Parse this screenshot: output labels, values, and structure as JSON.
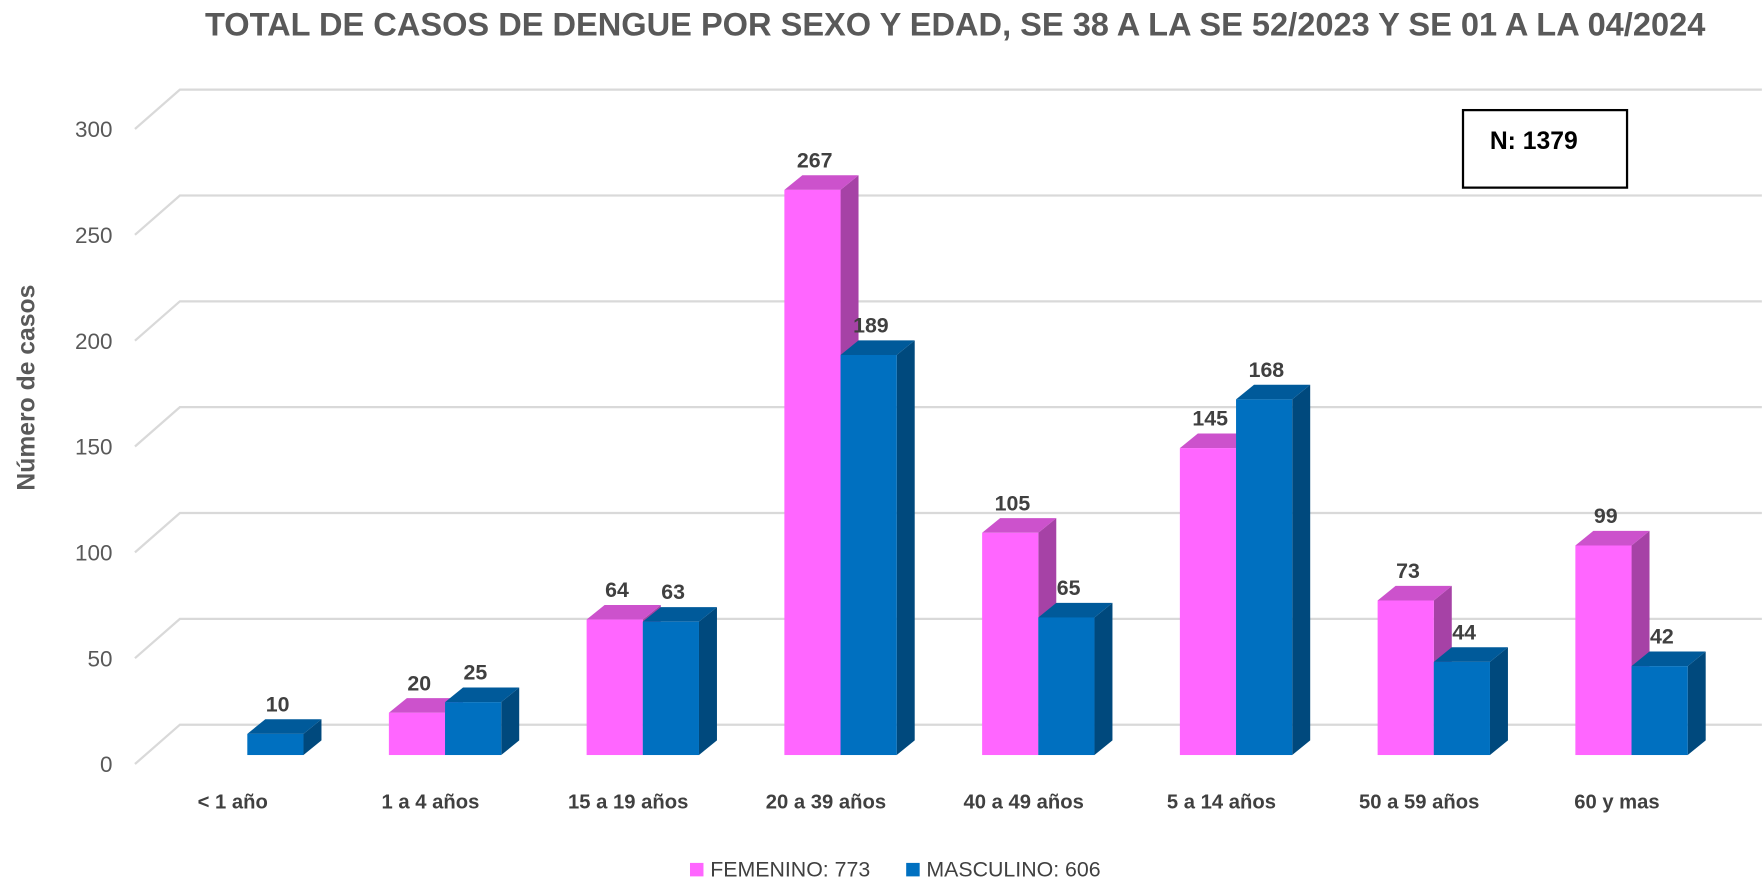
{
  "chart_data": {
    "type": "bar3d",
    "title": "TOTAL DE CASOS DE DENGUE POR SEXO Y EDAD, SE 38 A LA SE 52/2023 Y SE 01 A LA 04/2024",
    "y_label": "Número de casos",
    "annotation": "N: 1379",
    "categories": [
      "< 1 año",
      "1 a 4 años",
      "15 a 19 años",
      "20 a 39 años",
      "40 a 49 años",
      "5 a 14 años",
      "50 a 59 años",
      "60 y mas"
    ],
    "series": [
      {
        "name": "FEMENINO: 773",
        "color": "#ff66ff",
        "values": [
          null,
          20,
          64,
          267,
          105,
          145,
          73,
          99
        ]
      },
      {
        "name": "MASCULINO: 606",
        "color": "#0070c0",
        "values": [
          10,
          25,
          63,
          189,
          65,
          168,
          44,
          42
        ]
      }
    ],
    "ylim": [
      0,
      300
    ],
    "yticks": [
      0,
      50,
      100,
      150,
      200,
      250,
      300
    ],
    "grid": true,
    "legend": "bottom"
  }
}
